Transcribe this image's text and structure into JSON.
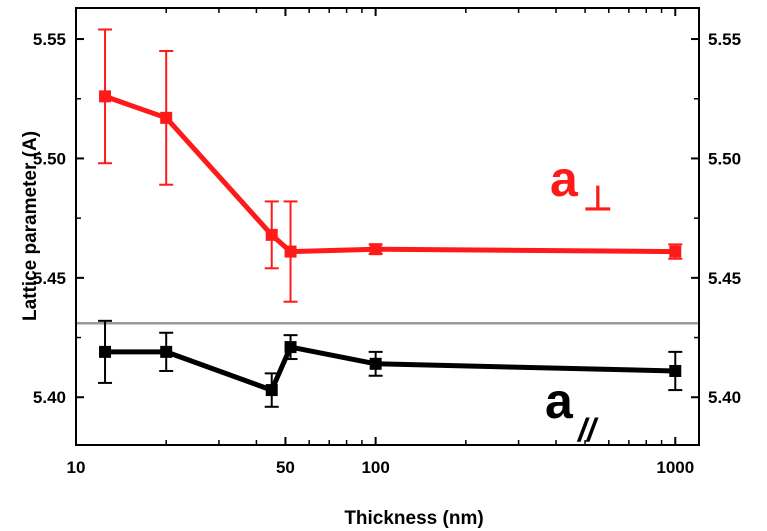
{
  "chart_data": {
    "type": "line",
    "xlabel": "Thickness (nm)",
    "ylabel": "Lattice parameter (A)",
    "xscale": "log",
    "xlim": [
      10,
      1200
    ],
    "ylim": [
      5.38,
      5.563
    ],
    "x_ticks": [
      10,
      50,
      100,
      1000
    ],
    "x_tick_labels": [
      "10",
      "50",
      "100",
      "1000"
    ],
    "y_ticks": [
      5.4,
      5.45,
      5.5,
      5.55
    ],
    "y_tick_labels": [
      "5.40",
      "5.45",
      "5.50",
      "5.55"
    ],
    "right_y_tick_labels": [
      "5.40",
      "5.45",
      "5.50",
      "5.55"
    ],
    "reference_line": {
      "y": 5.431,
      "color": "#999999"
    },
    "series": [
      {
        "name": "a⊥",
        "color": "#ff1a1a",
        "x": [
          12.5,
          20,
          45,
          52,
          100,
          1000
        ],
        "y": [
          5.526,
          5.517,
          5.468,
          5.461,
          5.462,
          5.461
        ],
        "err": [
          0.028,
          0.028,
          0.014,
          0.021,
          0.002,
          0.003
        ]
      },
      {
        "name": "a//",
        "color": "#000000",
        "x": [
          12.5,
          20,
          45,
          52,
          100,
          1000
        ],
        "y": [
          5.419,
          5.419,
          5.403,
          5.421,
          5.414,
          5.411
        ],
        "err": [
          0.013,
          0.008,
          0.007,
          0.005,
          0.005,
          0.008
        ]
      }
    ],
    "annotations": [
      {
        "series": 0,
        "main": "a",
        "sub": "⊥"
      },
      {
        "series": 1,
        "main": "a",
        "sub": "//"
      }
    ]
  }
}
